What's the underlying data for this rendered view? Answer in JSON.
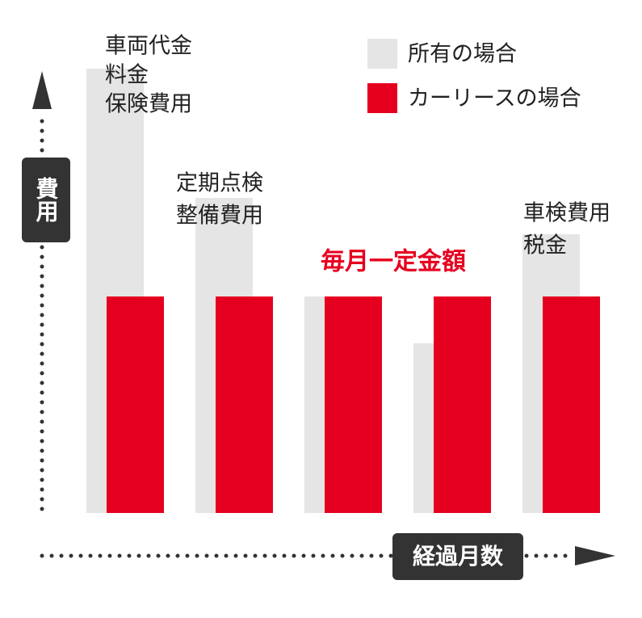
{
  "chart_data": {
    "type": "bar",
    "categories": [
      null,
      null,
      null,
      null,
      null
    ],
    "series": [
      {
        "name": "所有の場合",
        "color": "#e5e5e5",
        "values": [
          550,
          390,
          268,
          210,
          345
        ]
      },
      {
        "name": "カーリースの場合",
        "color": "#e60020",
        "values": [
          268,
          268,
          268,
          268,
          268
        ]
      }
    ],
    "ylim": [
      0,
      550
    ],
    "xlabel": "経過月数",
    "ylabel": "費用",
    "annotations": [
      {
        "lines": [
          "車両代金",
          "料金",
          "保険費用"
        ]
      },
      {
        "lines": [
          "定期点検",
          "整備費用"
        ]
      },
      {
        "lines": [
          "車検費用",
          "税金"
        ]
      }
    ],
    "highlight": "毎月一定金額"
  }
}
